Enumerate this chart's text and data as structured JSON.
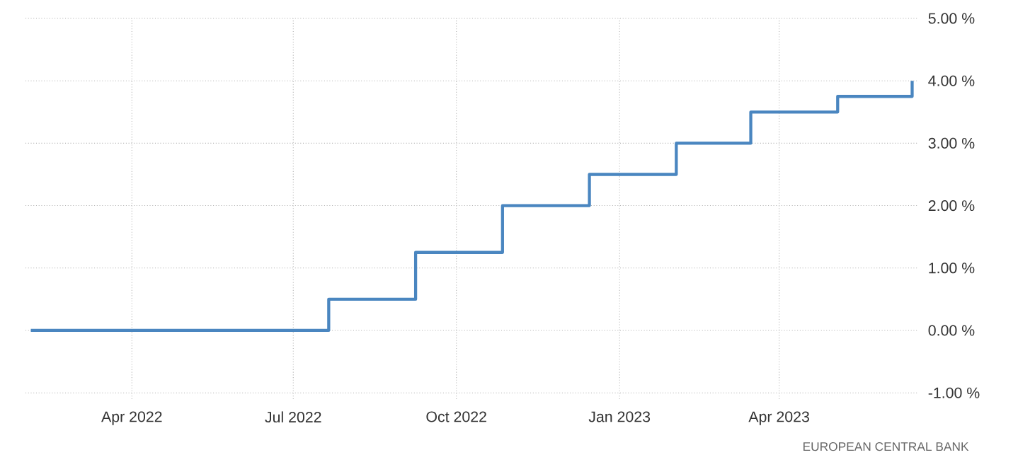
{
  "chart_data": {
    "type": "step",
    "x": [
      "2022-02-03",
      "2022-07-21",
      "2022-09-08",
      "2022-10-27",
      "2022-12-15",
      "2023-02-02",
      "2023-03-16",
      "2023-05-04",
      "2023-06-15"
    ],
    "values": [
      0,
      0.5,
      1.25,
      2.0,
      2.5,
      3.0,
      3.5,
      3.75,
      4.0
    ],
    "color": "#4a86c0",
    "xlim": [
      "2022-01-31",
      "2023-06-18"
    ],
    "xticks": [
      {
        "value": "2022-04-01",
        "label": "Apr 2022"
      },
      {
        "value": "2022-07-01",
        "label": "Jul 2022"
      },
      {
        "value": "2022-10-01",
        "label": "Oct 2022"
      },
      {
        "value": "2023-01-01",
        "label": "Jan 2023"
      },
      {
        "value": "2023-04-01",
        "label": "Apr 2023"
      }
    ],
    "ylim": [
      -1.1,
      5
    ],
    "yticks": [
      {
        "value": -1,
        "label": "-1.00 %"
      },
      {
        "value": 0,
        "label": "0.00 %"
      },
      {
        "value": 1,
        "label": "1.00 %"
      },
      {
        "value": 2,
        "label": "2.00 %"
      },
      {
        "value": 3,
        "label": "3.00 %"
      },
      {
        "value": 4,
        "label": "4.00 %"
      },
      {
        "value": 5,
        "label": "5.00 %"
      }
    ],
    "grid": true,
    "annotations": [
      "EUROPEAN CENTRAL BANK"
    ]
  }
}
